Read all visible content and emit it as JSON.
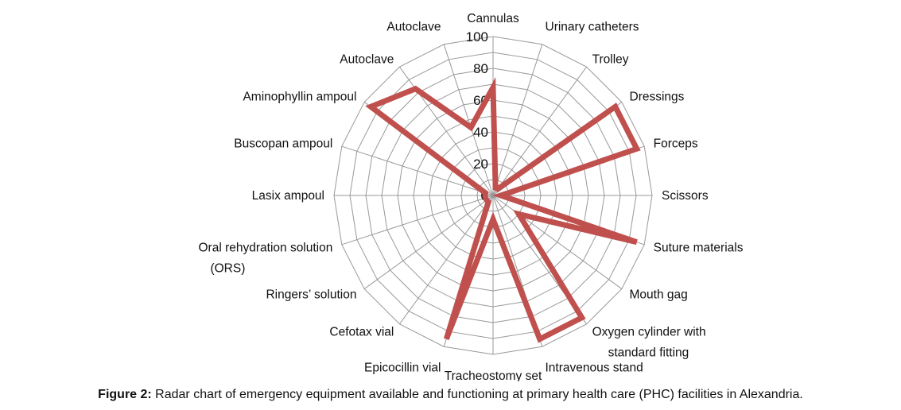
{
  "caption": {
    "prefix": "Figure 2:",
    "text": " Radar chart of emergency equipment available and functioning at primary health care (PHC) facilities in Alexandria."
  },
  "chart_data": {
    "type": "radar",
    "categories": [
      "Cannulas",
      "Urinary catheters",
      "Trolley",
      "Dressings",
      "Forceps",
      "Scissors",
      "Suture materials",
      "Mouth gag",
      "Oxygen cylinder with standard fitting",
      "Intravenous stand",
      "Tracheostomy set",
      "Epicocillin vial",
      "Cefotax vial",
      "Ringers’ solution",
      "Oral rehydration solution (ORS)",
      "Lasix ampoul",
      "Buscopan ampoul",
      "Aminophyllin ampoul",
      "Autoclave",
      "Autoclave"
    ],
    "series": [
      {
        "color": "#c0504d",
        "values": [
          68,
          5,
          5,
          95,
          95,
          5,
          95,
          20,
          95,
          95,
          15,
          95,
          5,
          5,
          5,
          5,
          5,
          95,
          83,
          45
        ]
      }
    ],
    "rlim": [
      0,
      100
    ],
    "ticks": [
      "0",
      "20",
      "40",
      "60",
      "80",
      "100"
    ],
    "grid": true,
    "gridline_color": "#999999"
  }
}
